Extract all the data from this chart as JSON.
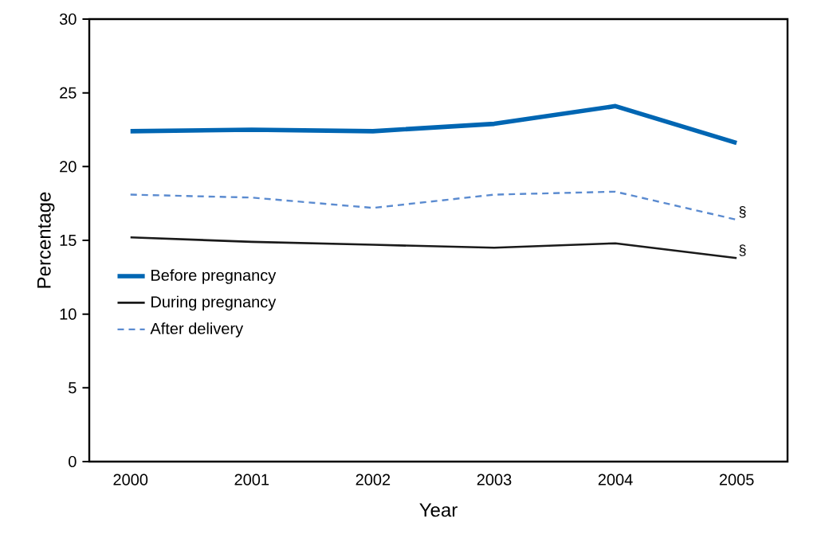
{
  "chart_data": {
    "type": "line",
    "xlabel": "Year",
    "ylabel": "Percentage",
    "categories": [
      "2000",
      "2001",
      "2002",
      "2003",
      "2004",
      "2005"
    ],
    "series": [
      {
        "name": "Before pregnancy",
        "color": "#0066b3",
        "line_style": "solid",
        "values": [
          22.4,
          22.5,
          22.4,
          22.9,
          24.1,
          21.6
        ]
      },
      {
        "name": "During pregnancy",
        "color": "#1a1a1a",
        "line_style": "solid",
        "values": [
          15.2,
          14.9,
          14.7,
          14.5,
          14.8,
          13.8
        ]
      },
      {
        "name": "After delivery",
        "color": "#5b8bd0",
        "line_style": "dashed",
        "values": [
          18.1,
          17.9,
          17.2,
          18.1,
          18.3,
          16.4
        ]
      }
    ],
    "ylim": [
      0,
      30
    ],
    "yticks": [
      0,
      5,
      10,
      15,
      20,
      25,
      30
    ],
    "grid": false,
    "legend": "bottom left",
    "marker": "none",
    "annotations": [
      {
        "text": "§",
        "x": "2005",
        "y": 16.4
      },
      {
        "text": "§",
        "x": "2005",
        "y": 13.8
      }
    ]
  }
}
